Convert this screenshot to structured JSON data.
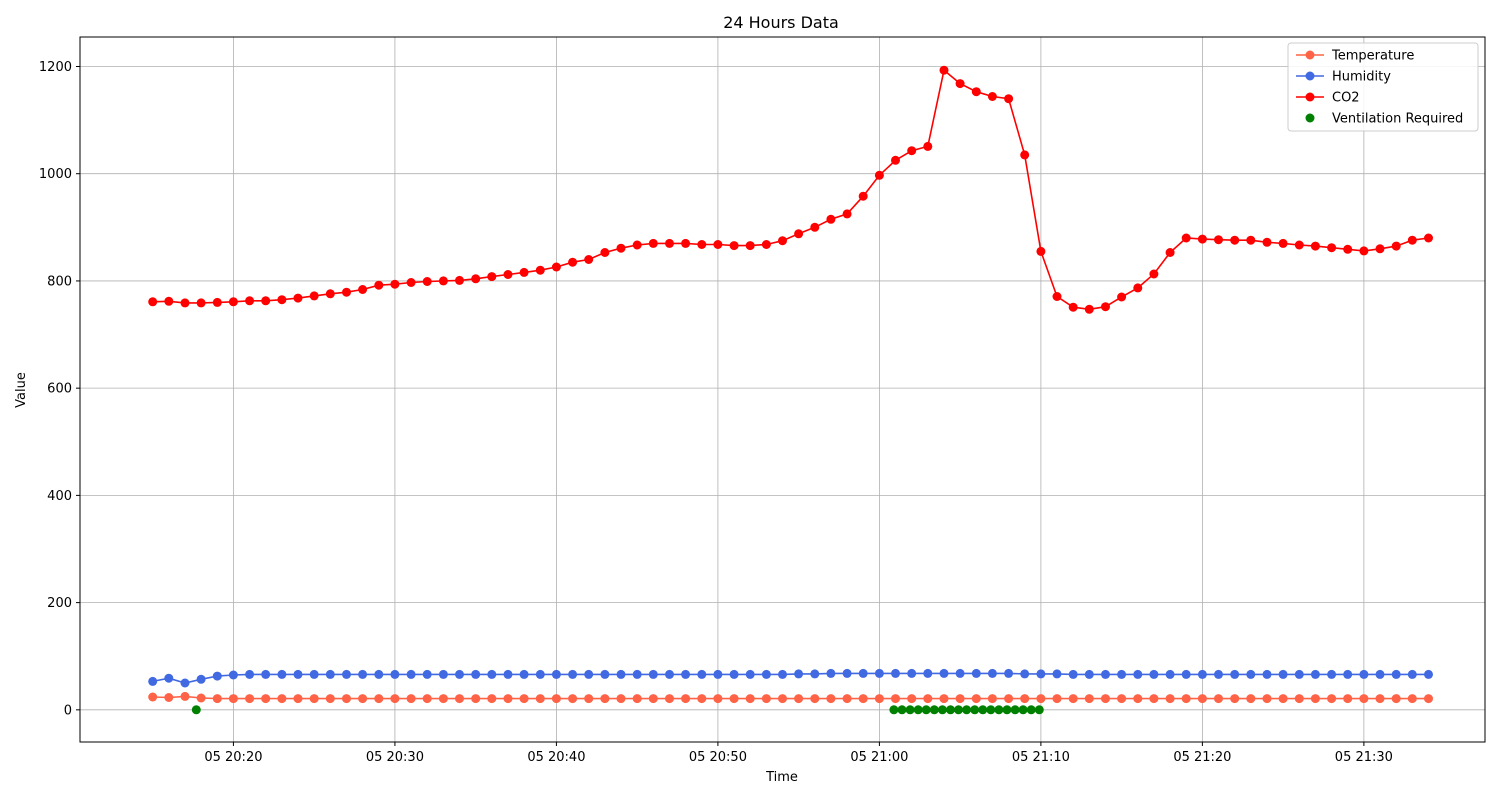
{
  "chart_data": {
    "type": "line",
    "title": "24 Hours Data",
    "xlabel": "Time",
    "ylabel": "Value",
    "x_start": "05 20:15",
    "x_step_minutes": 1,
    "x_ticks": [
      "05 20:20",
      "05 20:30",
      "05 20:40",
      "05 20:50",
      "05 21:00",
      "05 21:10",
      "05 21:20",
      "05 21:30"
    ],
    "y_ticks": [
      0,
      200,
      400,
      600,
      800,
      1000,
      1200
    ],
    "ylim": [
      -60,
      1255
    ],
    "grid": true,
    "legend_position": "top-right",
    "series": [
      {
        "name": "Temperature",
        "color": "#ff6347",
        "marker": "line-with-dots",
        "values": [
          24,
          23,
          25,
          22,
          21,
          21,
          21,
          21,
          21,
          21,
          21,
          21,
          21,
          21,
          21,
          21,
          21,
          21,
          21,
          21,
          21,
          21,
          21,
          21,
          21,
          21,
          21,
          21,
          21,
          21,
          21,
          21,
          21,
          21,
          21,
          21,
          21,
          21,
          21,
          21,
          21,
          21,
          21,
          21,
          21,
          21,
          21,
          21,
          21,
          21,
          21,
          21,
          21,
          21,
          21,
          21,
          21,
          21,
          21,
          21,
          21,
          21,
          21,
          21,
          21,
          21,
          21,
          21,
          21,
          21,
          21,
          21,
          21,
          21,
          21,
          21,
          21,
          21,
          21,
          21
        ]
      },
      {
        "name": "Humidity",
        "color": "#4169e1",
        "marker": "line-with-dots",
        "values": [
          53,
          59,
          50,
          57,
          63,
          65,
          66,
          66,
          66,
          66,
          66,
          66,
          66,
          66,
          66,
          66,
          66,
          66,
          66,
          66,
          66,
          66,
          66,
          66,
          66,
          66,
          66,
          66,
          66,
          66,
          66,
          66,
          66,
          66,
          66,
          66,
          66,
          66,
          66,
          66,
          67,
          67,
          68,
          68,
          68,
          68,
          68,
          68,
          68,
          68,
          68,
          68,
          68,
          68,
          67,
          67,
          67,
          66,
          66,
          66,
          66,
          66,
          66,
          66,
          66,
          66,
          66,
          66,
          66,
          66,
          66,
          66,
          66,
          66,
          66,
          66,
          66,
          66,
          66,
          66
        ]
      },
      {
        "name": "CO2",
        "color": "#ff0000",
        "marker": "line-with-dots",
        "values": [
          761,
          762,
          759,
          759,
          760,
          761,
          763,
          763,
          765,
          768,
          772,
          776,
          779,
          784,
          792,
          794,
          797,
          799,
          800,
          801,
          804,
          808,
          812,
          816,
          820,
          826,
          835,
          840,
          853,
          861,
          867,
          870,
          870,
          870,
          868,
          868,
          866,
          866,
          868,
          875,
          888,
          900,
          915,
          925,
          958,
          997,
          1025,
          1043,
          1051,
          1193,
          1168,
          1153,
          1144,
          1140,
          1035,
          855,
          771,
          751,
          747,
          752,
          770,
          787,
          813,
          853,
          880,
          878,
          877,
          876,
          876,
          872,
          870,
          867,
          865,
          862,
          859,
          856,
          860,
          865,
          876,
          880
        ]
      },
      {
        "name": "Ventilation Required",
        "color": "#008000",
        "marker": "dots-only",
        "x_minutes": [
          2.7,
          45.9,
          46.4,
          46.9,
          47.4,
          47.9,
          48.4,
          48.9,
          49.4,
          49.9,
          50.4,
          50.9,
          51.4,
          51.9,
          52.4,
          52.9,
          53.4,
          53.9,
          54.4,
          54.9
        ],
        "values": [
          0,
          0,
          0,
          0,
          0,
          0,
          0,
          0,
          0,
          0,
          0,
          0,
          0,
          0,
          0,
          0,
          0,
          0,
          0,
          0
        ]
      }
    ]
  }
}
